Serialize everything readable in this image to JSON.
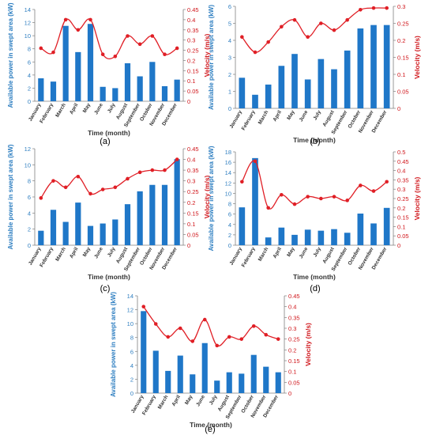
{
  "colors": {
    "bar": "#1f77c8",
    "line": "#e01f26",
    "left_axis_text": "#2f7fc1",
    "right_axis_text": "#d0161b",
    "axis": "#7f7f7f"
  },
  "months": [
    "January",
    "February",
    "March",
    "April",
    "May",
    "June",
    "July",
    "August",
    "September",
    "October",
    "November",
    "December"
  ],
  "chart_data": [
    {
      "type": "bar",
      "panel_label": "(a)",
      "xlabel": "Time (month)",
      "ylabel": "Available power in swept area (kW)",
      "y2label": "Velocity (m/s)",
      "ylim": [
        0,
        14
      ],
      "yticks": [
        0,
        2,
        4,
        6,
        8,
        10,
        12,
        14
      ],
      "y2lim": [
        0,
        0.45
      ],
      "y2ticks": [
        0,
        0.05,
        0.1,
        0.15,
        0.2,
        0.25,
        0.3,
        0.35,
        0.4,
        0.45
      ],
      "series": [
        {
          "kind": "bar",
          "values": [
            3.5,
            3.0,
            11.5,
            7.5,
            11.8,
            2.2,
            2.0,
            5.8,
            3.8,
            6.0,
            2.3,
            3.3
          ]
        },
        {
          "kind": "line",
          "values": [
            0.26,
            0.24,
            0.4,
            0.35,
            0.4,
            0.23,
            0.22,
            0.32,
            0.28,
            0.32,
            0.23,
            0.26
          ]
        }
      ]
    },
    {
      "type": "bar",
      "panel_label": "(b)",
      "xlabel": "Time (month)",
      "ylabel": "Available power in swept area (kW)",
      "y2label": "Velocity (m/s)",
      "ylim": [
        0,
        6
      ],
      "yticks": [
        0,
        1,
        2,
        3,
        4,
        5,
        6
      ],
      "y2lim": [
        0,
        0.3
      ],
      "y2ticks": [
        0,
        0.05,
        0.1,
        0.15,
        0.2,
        0.25,
        0.3
      ],
      "series": [
        {
          "kind": "bar",
          "values": [
            1.8,
            0.8,
            1.4,
            2.5,
            3.2,
            1.7,
            2.9,
            2.3,
            3.4,
            4.7,
            4.9,
            4.9
          ]
        },
        {
          "kind": "line",
          "values": [
            0.21,
            0.165,
            0.195,
            0.24,
            0.26,
            0.21,
            0.25,
            0.23,
            0.26,
            0.29,
            0.295,
            0.295
          ]
        }
      ]
    },
    {
      "type": "bar",
      "panel_label": "(c)",
      "xlabel": "Time (month)",
      "ylabel": "Available power in swept area (kW)",
      "y2label": "Velocity (m/s)",
      "ylim": [
        0,
        12
      ],
      "yticks": [
        0,
        2,
        4,
        6,
        8,
        10,
        12
      ],
      "y2lim": [
        0,
        0.45
      ],
      "y2ticks": [
        0,
        0.05,
        0.1,
        0.15,
        0.2,
        0.25,
        0.3,
        0.35,
        0.4,
        0.45
      ],
      "series": [
        {
          "kind": "bar",
          "values": [
            1.8,
            4.4,
            2.9,
            5.3,
            2.4,
            2.7,
            3.2,
            5.1,
            6.7,
            7.5,
            7.5,
            10.7
          ]
        },
        {
          "kind": "line",
          "values": [
            0.22,
            0.3,
            0.27,
            0.32,
            0.24,
            0.26,
            0.27,
            0.31,
            0.34,
            0.35,
            0.35,
            0.4
          ]
        }
      ]
    },
    {
      "type": "bar",
      "panel_label": "(d)",
      "xlabel": "Time (month)",
      "ylabel": "Available power in swept area (kW)",
      "y2label": "Velocity (m/s)",
      "ylim": [
        0,
        18
      ],
      "yticks": [
        0,
        2,
        4,
        6,
        8,
        10,
        12,
        14,
        16,
        18
      ],
      "y2lim": [
        0,
        0.5
      ],
      "y2ticks": [
        0,
        0.05,
        0.1,
        0.15,
        0.2,
        0.25,
        0.3,
        0.35,
        0.4,
        0.45,
        0.5
      ],
      "series": [
        {
          "kind": "bar",
          "values": [
            7.3,
            16.8,
            1.5,
            3.4,
            2.0,
            3.0,
            2.8,
            3.1,
            2.4,
            6.1,
            4.2,
            7.2
          ]
        },
        {
          "kind": "line",
          "values": [
            0.34,
            0.45,
            0.2,
            0.27,
            0.22,
            0.26,
            0.25,
            0.26,
            0.24,
            0.32,
            0.29,
            0.34
          ]
        }
      ]
    },
    {
      "type": "bar",
      "panel_label": "(e)",
      "xlabel": "Time (month)",
      "ylabel": "Available power in swept area (kW)",
      "y2label": "Velocity (m/s)",
      "ylim": [
        0,
        14
      ],
      "yticks": [
        0,
        2,
        4,
        6,
        8,
        10,
        12,
        14
      ],
      "y2lim": [
        0,
        0.45
      ],
      "y2ticks": [
        0,
        0.05,
        0.1,
        0.15,
        0.2,
        0.25,
        0.3,
        0.35,
        0.4,
        0.45
      ],
      "series": [
        {
          "kind": "bar",
          "values": [
            11.8,
            6.1,
            3.2,
            5.4,
            2.7,
            7.2,
            1.8,
            3.0,
            2.8,
            5.5,
            3.8,
            3.0
          ]
        },
        {
          "kind": "line",
          "values": [
            0.4,
            0.32,
            0.26,
            0.3,
            0.24,
            0.34,
            0.22,
            0.26,
            0.25,
            0.31,
            0.27,
            0.25
          ]
        }
      ]
    }
  ]
}
